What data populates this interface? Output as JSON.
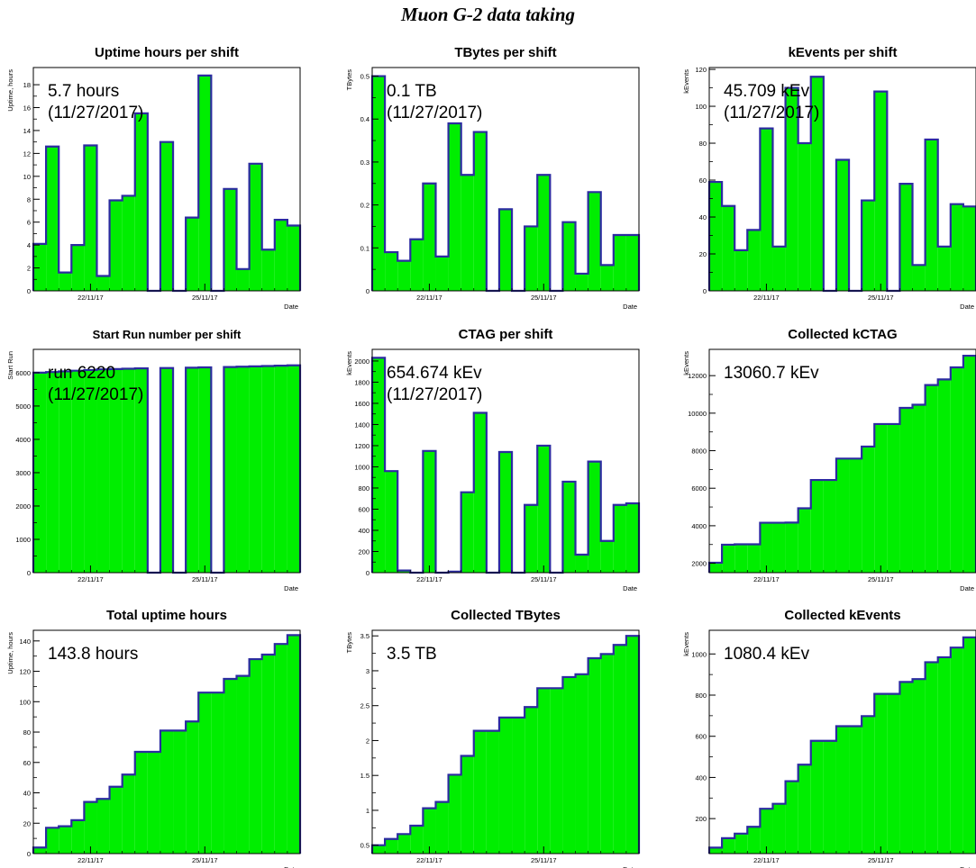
{
  "page": {
    "title": "Muon G-2 data taking"
  },
  "colors": {
    "fill": "#00ee00",
    "outline": "#2b2ba0",
    "axis": "#000000"
  },
  "chart_data": [
    {
      "type": "bar",
      "title": "Uptime hours per shift",
      "ylabel": "Uptime, hours",
      "xlabel": "Date",
      "annotation": [
        "5.7 hours",
        "(11/27/2017)"
      ],
      "ylim": [
        0,
        19.5
      ],
      "yticks": [
        0,
        2,
        4,
        6,
        8,
        10,
        12,
        14,
        16,
        18
      ],
      "xticks": [
        {
          "at": 4,
          "label": "22/11/17"
        },
        {
          "at": 13,
          "label": "25/11/17"
        }
      ],
      "values": [
        4.1,
        12.6,
        1.6,
        4.0,
        12.7,
        1.3,
        7.9,
        8.3,
        15.5,
        0,
        13.0,
        0,
        6.4,
        18.8,
        0,
        8.9,
        1.9,
        11.1,
        3.6,
        6.2,
        5.7
      ]
    },
    {
      "type": "bar",
      "title": "TBytes per shift",
      "ylabel": "TBytes",
      "xlabel": "Date",
      "annotation": [
        "0.1 TB",
        "(11/27/2017)"
      ],
      "ylim": [
        0,
        0.52
      ],
      "yticks": [
        0,
        0.1,
        0.2,
        0.3,
        0.4,
        0.5
      ],
      "xticks": [
        {
          "at": 4,
          "label": "22/11/17"
        },
        {
          "at": 13,
          "label": "25/11/17"
        }
      ],
      "values": [
        0.5,
        0.09,
        0.07,
        0.12,
        0.25,
        0.08,
        0.39,
        0.27,
        0.37,
        0,
        0.19,
        0,
        0.15,
        0.27,
        0,
        0.16,
        0.04,
        0.23,
        0.06,
        0.13,
        0.13
      ]
    },
    {
      "type": "bar",
      "title": "kEvents per shift",
      "ylabel": "kEvents",
      "xlabel": "Date",
      "annotation": [
        "45.709 kEv",
        "(11/27/2017)"
      ],
      "ylim": [
        0,
        121
      ],
      "yticks": [
        0,
        20,
        40,
        60,
        80,
        100,
        120
      ],
      "xticks": [
        {
          "at": 4,
          "label": "22/11/17"
        },
        {
          "at": 13,
          "label": "25/11/17"
        }
      ],
      "values": [
        59,
        46,
        22,
        33,
        88,
        24,
        110,
        80,
        116,
        0,
        71,
        0,
        49,
        108,
        0,
        58,
        14,
        82,
        24,
        47,
        45.7
      ]
    },
    {
      "type": "bar",
      "title": "Start Run number per shift",
      "ylabel": "Start Run",
      "xlabel": "Date",
      "annotation": [
        "run 6220",
        "(11/27/2017)"
      ],
      "ylim": [
        0,
        6700
      ],
      "yticks": [
        0,
        1000,
        2000,
        3000,
        4000,
        5000,
        6000
      ],
      "xticks": [
        {
          "at": 4,
          "label": "22/11/17"
        },
        {
          "at": 13,
          "label": "25/11/17"
        }
      ],
      "values": [
        6000,
        6020,
        6040,
        6060,
        6080,
        6100,
        6110,
        6120,
        6130,
        0,
        6140,
        0,
        6150,
        6160,
        0,
        6170,
        6180,
        6190,
        6200,
        6210,
        6220
      ]
    },
    {
      "type": "bar",
      "title": "CTAG per shift",
      "ylabel": "kEvents",
      "xlabel": "Date",
      "annotation": [
        "654.674 kEv",
        "(11/27/2017)"
      ],
      "ylim": [
        0,
        2110
      ],
      "yticks": [
        0,
        200,
        400,
        600,
        800,
        1000,
        1200,
        1400,
        1600,
        1800,
        2000
      ],
      "xticks": [
        {
          "at": 4,
          "label": "22/11/17"
        },
        {
          "at": 13,
          "label": "25/11/17"
        }
      ],
      "values": [
        2030,
        960,
        20,
        0,
        1150,
        0,
        10,
        760,
        1510,
        0,
        1140,
        0,
        640,
        1200,
        0,
        860,
        170,
        1050,
        300,
        640,
        655
      ]
    },
    {
      "type": "bar",
      "title": "Collected kCTAG",
      "ylabel": "kEvents",
      "xlabel": "Date",
      "annotation": [
        "13060.7 kEv"
      ],
      "ylim": [
        1500,
        13400
      ],
      "yticks": [
        2000,
        4000,
        6000,
        8000,
        10000,
        12000
      ],
      "xticks": [
        {
          "at": 4,
          "label": "22/11/17"
        },
        {
          "at": 13,
          "label": "25/11/17"
        }
      ],
      "values": [
        2030,
        2990,
        3010,
        3010,
        4160,
        4160,
        4170,
        4930,
        6440,
        6440,
        7580,
        7580,
        8220,
        9420,
        9420,
        10280,
        10450,
        11500,
        11800,
        12440,
        13060.7
      ]
    },
    {
      "type": "area",
      "title": "Total uptime hours",
      "ylabel": "Uptime, hours",
      "xlabel": "Date",
      "annotation": [
        "143.8 hours"
      ],
      "ylim": [
        0,
        147
      ],
      "yticks": [
        0,
        20,
        40,
        60,
        80,
        100,
        120,
        140
      ],
      "xticks": [
        {
          "at": 4,
          "label": "22/11/17"
        },
        {
          "at": 13,
          "label": "25/11/17"
        }
      ],
      "values": [
        4,
        17,
        18,
        22,
        34,
        36,
        44,
        52,
        67,
        67,
        81,
        81,
        87,
        106,
        106,
        115,
        117,
        128,
        131,
        138,
        143.8
      ]
    },
    {
      "type": "area",
      "title": "Collected TBytes",
      "ylabel": "TBytes",
      "xlabel": "Date",
      "annotation": [
        "3.5 TB"
      ],
      "ylim": [
        0.38,
        3.58
      ],
      "yticks": [
        0.5,
        1,
        1.5,
        2,
        2.5,
        3,
        3.5
      ],
      "xticks": [
        {
          "at": 4,
          "label": "22/11/17"
        },
        {
          "at": 13,
          "label": "25/11/17"
        }
      ],
      "values": [
        0.5,
        0.59,
        0.66,
        0.78,
        1.03,
        1.12,
        1.51,
        1.78,
        2.14,
        2.14,
        2.33,
        2.33,
        2.48,
        2.75,
        2.75,
        2.91,
        2.95,
        3.18,
        3.24,
        3.37,
        3.5
      ]
    },
    {
      "type": "area",
      "title": "Collected kEvents",
      "ylabel": "kEvents",
      "xlabel": "Date",
      "annotation": [
        "1080.4 kEv"
      ],
      "ylim": [
        30,
        1115
      ],
      "yticks": [
        200,
        400,
        600,
        800,
        1000
      ],
      "xticks": [
        {
          "at": 4,
          "label": "22/11/17"
        },
        {
          "at": 13,
          "label": "25/11/17"
        }
      ],
      "values": [
        59,
        105,
        127,
        160,
        248,
        272,
        382,
        462,
        578,
        578,
        649,
        649,
        698,
        806,
        806,
        864,
        878,
        960,
        984,
        1031,
        1080.4
      ]
    }
  ]
}
